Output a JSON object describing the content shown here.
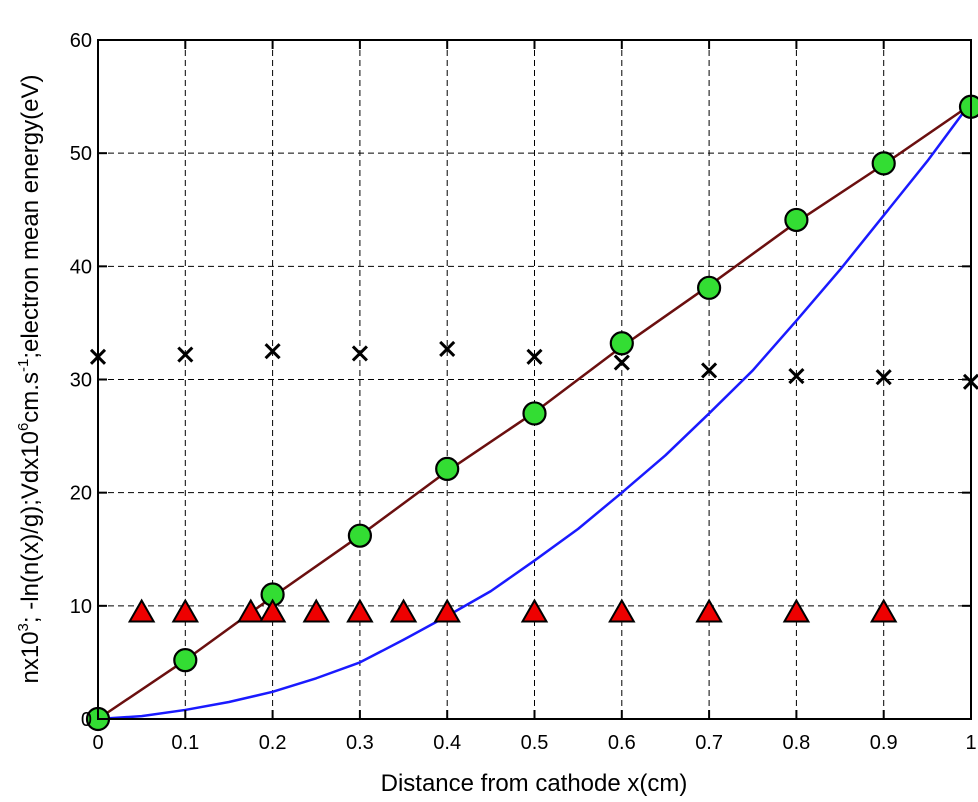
{
  "chart_data": {
    "type": "line",
    "xlabel": "Distance from cathode x(cm)",
    "ylabel": {
      "part1": "nx10",
      "sup1": "3",
      "part2": "; -ln(n(x)/g);Vdx10",
      "sup2": "6",
      "part3": "cm.s",
      "sup3": "-1",
      "part4": ";electron mean energy(eV)"
    },
    "xlim": [
      0,
      1
    ],
    "ylim": [
      0,
      60
    ],
    "x_ticks": [
      0,
      0.1,
      0.2,
      0.3,
      0.4,
      0.5,
      0.6,
      0.7,
      0.8,
      0.9,
      1
    ],
    "x_tick_labels": [
      "0",
      "0.1",
      "0.2",
      "0.3",
      "0.4",
      "0.5",
      "0.6",
      "0.7",
      "0.8",
      "0.9",
      "1"
    ],
    "y_ticks": [
      0,
      10,
      20,
      30,
      40,
      50,
      60
    ],
    "y_tick_labels": [
      "0",
      "10",
      "20",
      "30",
      "40",
      "50",
      "60"
    ],
    "grid": true,
    "series": [
      {
        "style": "line",
        "color": "#6b0f0f",
        "x": [
          0,
          0.1,
          0.2,
          0.3,
          0.4,
          0.5,
          0.6,
          0.7,
          0.8,
          0.9,
          1.0
        ],
        "y": [
          0,
          5.2,
          10.8,
          16.2,
          21.9,
          27.1,
          32.9,
          38.3,
          43.9,
          49.0,
          54.3
        ]
      },
      {
        "style": "line",
        "color": "#1a1aff",
        "x": [
          0,
          0.05,
          0.1,
          0.15,
          0.2,
          0.25,
          0.3,
          0.35,
          0.4,
          0.45,
          0.5,
          0.55,
          0.6,
          0.65,
          0.7,
          0.75,
          0.8,
          0.85,
          0.9,
          0.95,
          1.0
        ],
        "y": [
          0,
          0.25,
          0.8,
          1.5,
          2.4,
          3.6,
          5.0,
          7.0,
          9.1,
          11.3,
          14.0,
          16.8,
          20.0,
          23.3,
          27.0,
          30.8,
          35.2,
          39.7,
          44.5,
          49.3,
          54.5
        ]
      },
      {
        "style": "markers",
        "marker": "circle",
        "color": "#33dd33",
        "x": [
          0,
          0.1,
          0.2,
          0.3,
          0.4,
          0.5,
          0.6,
          0.7,
          0.8,
          0.9,
          1.0
        ],
        "y": [
          0,
          5.2,
          11.0,
          16.2,
          22.1,
          27.0,
          33.2,
          38.1,
          44.1,
          49.1,
          54.1
        ]
      },
      {
        "style": "markers",
        "marker": "triangle",
        "color": "#ee0000",
        "x": [
          0.05,
          0.1,
          0.175,
          0.2,
          0.25,
          0.3,
          0.35,
          0.4,
          0.5,
          0.6,
          0.7,
          0.8,
          0.9
        ],
        "y": [
          9.5,
          9.5,
          9.5,
          9.5,
          9.5,
          9.5,
          9.5,
          9.5,
          9.5,
          9.5,
          9.5,
          9.5,
          9.5
        ]
      },
      {
        "style": "markers",
        "marker": "x",
        "color": "#000000",
        "x": [
          0,
          0.1,
          0.2,
          0.3,
          0.4,
          0.5,
          0.6,
          0.7,
          0.8,
          0.9,
          1.0
        ],
        "y": [
          32.0,
          32.2,
          32.5,
          32.3,
          32.7,
          32.0,
          31.5,
          30.8,
          30.3,
          30.2,
          29.8
        ]
      }
    ]
  }
}
